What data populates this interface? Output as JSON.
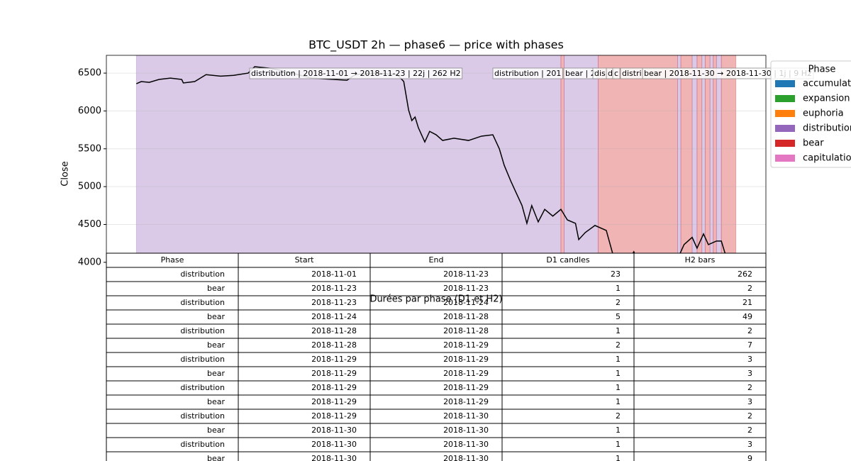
{
  "chart_data": {
    "type": "line",
    "title": "BTC_USDT 2h — phase6 — price with phases",
    "ylabel": "Close",
    "x": [
      0,
      3,
      8,
      14,
      21,
      28,
      29,
      36,
      43,
      52,
      60,
      69,
      73,
      82,
      91,
      108,
      130,
      135,
      148,
      161,
      165,
      168,
      170,
      172,
      174,
      178,
      181,
      185,
      189,
      196,
      205,
      213,
      220,
      224,
      227,
      231,
      234,
      238,
      241,
      244,
      248,
      252,
      257,
      262,
      266,
      271,
      273,
      277,
      283,
      290,
      294,
      297,
      307,
      312,
      323,
      332,
      338,
      343,
      346,
      350,
      353,
      358,
      361,
      363,
      367
    ],
    "values": [
      6360,
      6388,
      6378,
      6416,
      6434,
      6416,
      6370,
      6388,
      6480,
      6460,
      6470,
      6500,
      6585,
      6565,
      6528,
      6434,
      6406,
      6480,
      6500,
      6480,
      6390,
      6013,
      5873,
      5920,
      5780,
      5590,
      5730,
      5685,
      5610,
      5640,
      5610,
      5667,
      5685,
      5500,
      5283,
      5077,
      4936,
      4750,
      4515,
      4750,
      4534,
      4700,
      4610,
      4700,
      4560,
      4515,
      4300,
      4393,
      4487,
      4421,
      4112,
      3800,
      4140,
      3900,
      3850,
      3950,
      4234,
      4330,
      4187,
      4375,
      4234,
      4281,
      4281,
      4140,
      3900
    ],
    "color": "#000000",
    "xlim": [
      -18.5,
      388.5
    ],
    "ylim": [
      3530,
      6735
    ],
    "yticks": [
      4000,
      4500,
      5000,
      5500,
      6000,
      6500
    ],
    "grid": true,
    "annotations": [
      "distribution | 2018-11-01 → 2018-11-23 | 22j | 262 H2",
      "distribution | 201",
      "bear | 2",
      "dis",
      "d",
      "c",
      "distri",
      "bear | 2018-11-30 → 2018-11-30 | 1j | 9 H2"
    ],
    "legend": {
      "title": "Phase",
      "position": "upper right outside",
      "entries": [
        {
          "name": "accumulation",
          "color": "#1f77b4"
        },
        {
          "name": "expansion",
          "color": "#2ca02c"
        },
        {
          "name": "euphoria",
          "color": "#ff7f0e"
        },
        {
          "name": "distribution",
          "color": "#9467bd"
        },
        {
          "name": "bear",
          "color": "#d62728"
        },
        {
          "name": "capitulation",
          "color": "#e377c2"
        }
      ]
    }
  },
  "table": {
    "title": "Durées par phase (D1 et H2)",
    "columns": [
      "Phase",
      "Start",
      "End",
      "D1 candles",
      "H2 bars"
    ],
    "rows": [
      [
        "distribution",
        "2018-11-01",
        "2018-11-23",
        23,
        262
      ],
      [
        "bear",
        "2018-11-23",
        "2018-11-23",
        1,
        2
      ],
      [
        "distribution",
        "2018-11-23",
        "2018-11-24",
        2,
        21
      ],
      [
        "bear",
        "2018-11-24",
        "2018-11-28",
        5,
        49
      ],
      [
        "distribution",
        "2018-11-28",
        "2018-11-28",
        1,
        2
      ],
      [
        "bear",
        "2018-11-28",
        "2018-11-29",
        2,
        7
      ],
      [
        "distribution",
        "2018-11-29",
        "2018-11-29",
        1,
        3
      ],
      [
        "bear",
        "2018-11-29",
        "2018-11-29",
        1,
        3
      ],
      [
        "distribution",
        "2018-11-29",
        "2018-11-29",
        1,
        2
      ],
      [
        "bear",
        "2018-11-29",
        "2018-11-29",
        1,
        3
      ],
      [
        "distribution",
        "2018-11-29",
        "2018-11-30",
        2,
        2
      ],
      [
        "bear",
        "2018-11-30",
        "2018-11-30",
        1,
        2
      ],
      [
        "distribution",
        "2018-11-30",
        "2018-11-30",
        1,
        3
      ],
      [
        "bear",
        "2018-11-30",
        "2018-11-30",
        1,
        9
      ]
    ]
  }
}
